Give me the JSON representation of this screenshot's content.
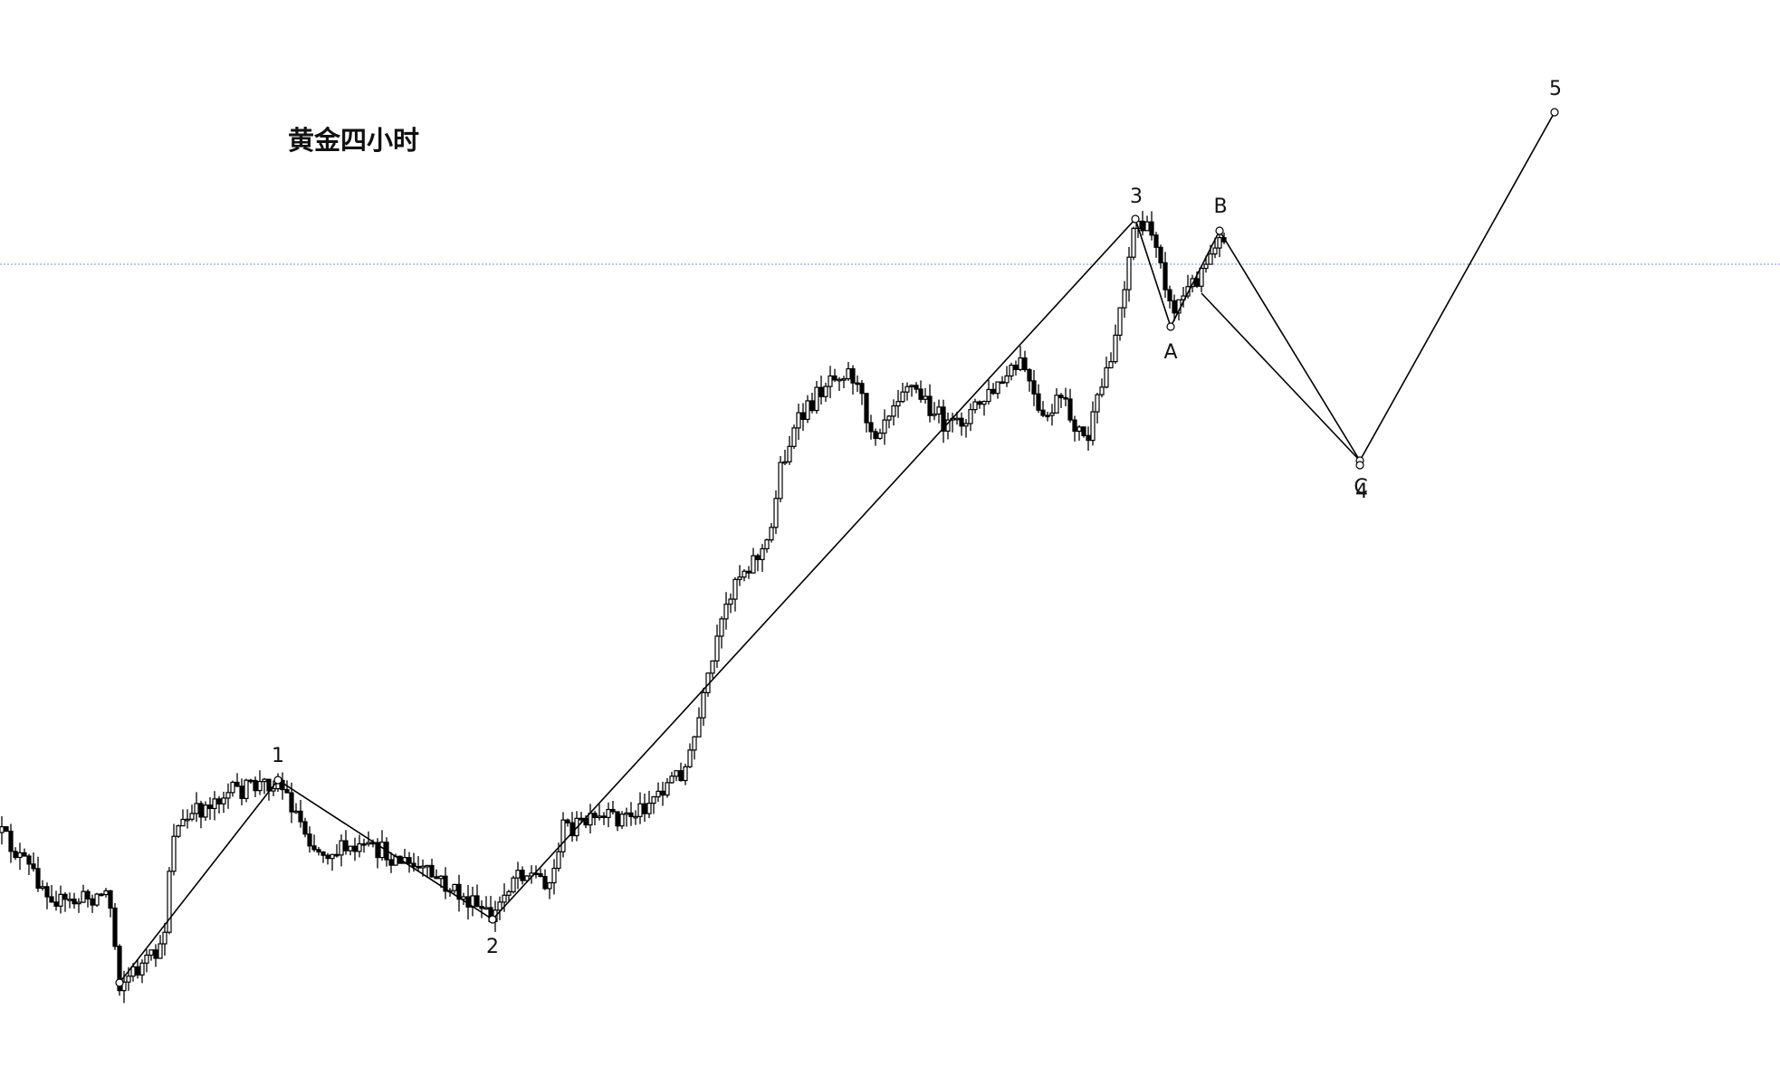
{
  "title": "黄金四小时",
  "waves": [
    {
      "label": "1"
    },
    {
      "label": "2"
    },
    {
      "label": "3"
    },
    {
      "label": "A"
    },
    {
      "label": "B"
    },
    {
      "label": "C"
    },
    {
      "label": "4"
    },
    {
      "label": "5"
    }
  ]
}
